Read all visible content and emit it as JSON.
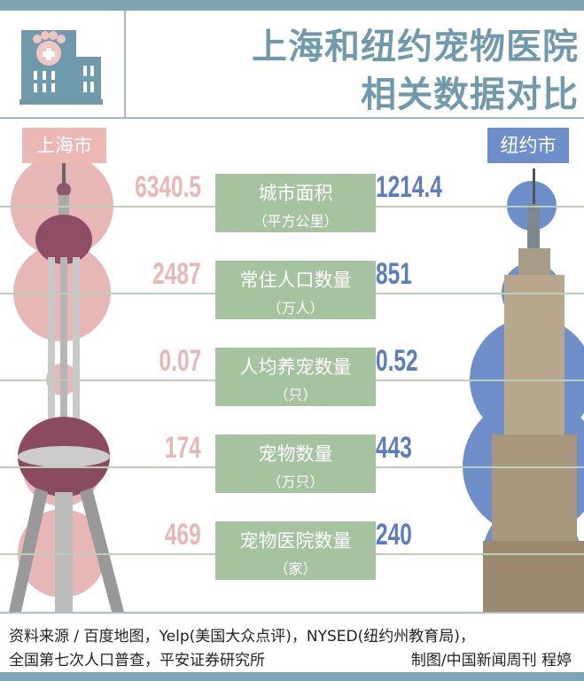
{
  "title": {
    "line1": "上海和纽约宠物医院",
    "line2": "相关数据对比"
  },
  "colors": {
    "header": "#7fa5b4",
    "shanghai": "#e6b7b4",
    "new_york": "#6f8fcb",
    "label_box": "#a6c3a0"
  },
  "icons": {
    "logo": "pet-hospital-building-icon"
  },
  "chart_data": {
    "type": "bubble-comparison",
    "categories": [
      {
        "label": "城市面积",
        "unit": "（平方公里）"
      },
      {
        "label": "常住人口数量",
        "unit": "（万人）"
      },
      {
        "label": "人均养宠数量",
        "unit": "（只）"
      },
      {
        "label": "宠物数量",
        "unit": "（万只）"
      },
      {
        "label": "宠物医院数量",
        "unit": "（家）"
      }
    ],
    "series": [
      {
        "name": "上海市",
        "values": [
          "6340.5",
          "2487",
          "0.07",
          "174",
          "469"
        ]
      },
      {
        "name": "纽约市",
        "values": [
          "1214.4",
          "851",
          "0.52",
          "443",
          "240"
        ]
      }
    ]
  },
  "footer": {
    "line1": "资料来源 / 百度地图，Yelp(美国大众点评)，NYSED(纽约州教育局)，",
    "line2": "全国第七次人口普查，平安证券研究所",
    "credit": "制图/中国新闻周刊 程婷"
  }
}
